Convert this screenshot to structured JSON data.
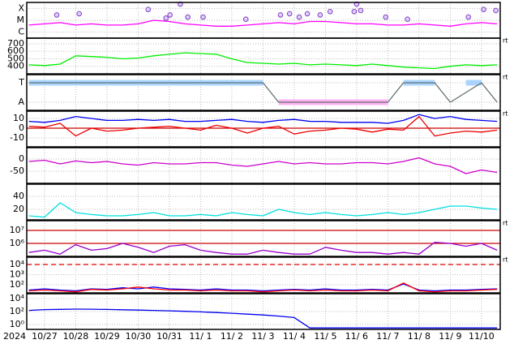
{
  "x_axis": {
    "label": "2024",
    "xlim": [
      0.43,
      15.6
    ],
    "xticks": [
      {
        "value": 1,
        "label": "10/27"
      },
      {
        "value": 2,
        "label": "10/28"
      },
      {
        "value": 3,
        "label": "10/29"
      },
      {
        "value": 4,
        "label": "10/30"
      },
      {
        "value": 5,
        "label": "10/31"
      },
      {
        "value": 6,
        "label": "11/ 1"
      },
      {
        "value": 7,
        "label": "11/ 2"
      },
      {
        "value": 8,
        "label": "11/ 3"
      },
      {
        "value": 9,
        "label": "11/ 4"
      },
      {
        "value": 10,
        "label": "11/ 5"
      },
      {
        "value": 11,
        "label": "11/ 6"
      },
      {
        "value": 12,
        "label": "11/ 7"
      },
      {
        "value": 13,
        "label": "11/ 8"
      },
      {
        "value": 14,
        "label": "11/ 9"
      },
      {
        "value": 15,
        "label": "11/10"
      }
    ],
    "grid": true
  },
  "chart_data": [
    {
      "type": "line",
      "ylim": [
        0.5,
        3.5
      ],
      "yticks": [
        {
          "value": 3,
          "label": "X"
        },
        {
          "value": 2,
          "label": "M"
        },
        {
          "value": 1,
          "label": "C"
        }
      ],
      "x": [
        0.5,
        1,
        1.5,
        2,
        2.5,
        3,
        3.5,
        4,
        4.5,
        5,
        5.5,
        6,
        6.5,
        7,
        7.5,
        8,
        8.5,
        9,
        9.5,
        10,
        10.5,
        11,
        11.5,
        12,
        12.5,
        13,
        13.5,
        14,
        14.5,
        15,
        15.5
      ],
      "series": [
        {
          "color": "#ff00ff",
          "values": [
            1.6,
            1.7,
            1.8,
            1.6,
            1.7,
            1.6,
            1.6,
            1.7,
            2.0,
            1.9,
            1.7,
            1.6,
            1.5,
            1.5,
            1.6,
            1.7,
            1.8,
            1.7,
            1.9,
            1.9,
            1.8,
            1.7,
            1.7,
            1.6,
            1.6,
            1.7,
            1.6,
            1.5,
            1.7,
            1.8,
            1.7
          ]
        },
        {
          "type": "scatter",
          "color": "#8040c0",
          "x": [
            1.39,
            2.11,
            4.32,
            4.89,
            5.02,
            5.35,
            5.59,
            6.08,
            7.45,
            8.56,
            8.85,
            9.16,
            9.42,
            9.83,
            10.15,
            10.92,
            11.0,
            11.13,
            11.93,
            12.63,
            14.58,
            15.07,
            15.46
          ],
          "values": [
            2.45,
            2.55,
            2.91,
            2.18,
            2.45,
            3.36,
            2.27,
            2.27,
            2.09,
            2.45,
            2.55,
            2.27,
            2.55,
            2.45,
            2.73,
            2.73,
            3.36,
            2.82,
            2.27,
            2.09,
            2.27,
            2.91,
            2.82
          ]
        }
      ]
    },
    {
      "type": "line",
      "ylim": [
        300,
        775
      ],
      "yticks": [
        700,
        600,
        500,
        400
      ],
      "side_label": "rt",
      "x": [
        0.5,
        1,
        1.5,
        2,
        2.5,
        3,
        3.5,
        4,
        4.5,
        5,
        5.5,
        6,
        6.5,
        7,
        7.5,
        8,
        8.5,
        9,
        9.5,
        10,
        10.5,
        11,
        11.5,
        12,
        12.5,
        13,
        13.5,
        14,
        14.5,
        15,
        15.5
      ],
      "series": [
        {
          "color": "#00ee00",
          "values": [
            420,
            410,
            430,
            540,
            530,
            520,
            500,
            510,
            540,
            560,
            580,
            570,
            560,
            500,
            450,
            440,
            430,
            440,
            420,
            430,
            420,
            410,
            430,
            410,
            390,
            380,
            370,
            400,
            420,
            410,
            420
          ]
        }
      ]
    },
    {
      "type": "line",
      "ylim": [
        -0.42,
        1.42
      ],
      "yticks": [
        {
          "value": 1,
          "label": "T"
        },
        {
          "value": 0,
          "label": "A"
        }
      ],
      "side_label": "rt",
      "x": [
        0.5,
        1,
        1.5,
        2,
        2.5,
        3,
        3.5,
        4,
        4.5,
        5,
        5.5,
        6,
        6.5,
        7,
        7.5,
        8,
        8.5,
        9,
        9.5,
        10,
        10.5,
        11,
        11.5,
        12,
        12.5,
        13,
        13.5,
        14,
        14.5,
        15,
        15.5
      ],
      "series": [
        {
          "color": "#aad4ff",
          "width": 7,
          "values": [
            1,
            1,
            1,
            1,
            1,
            1,
            1,
            1,
            1,
            1,
            1,
            1,
            1,
            1,
            1,
            1,
            null,
            null,
            null,
            null,
            null,
            null,
            null,
            null,
            1,
            1,
            1,
            null,
            1,
            1,
            null
          ]
        },
        {
          "color": "#ffb0f0",
          "width": 7,
          "values": [
            null,
            null,
            null,
            null,
            null,
            null,
            null,
            null,
            null,
            null,
            null,
            null,
            null,
            null,
            null,
            null,
            0,
            0,
            0,
            0,
            0,
            0,
            0,
            0,
            null,
            null,
            null,
            0,
            null,
            null,
            0
          ]
        },
        {
          "color": "#607070",
          "values": [
            1,
            1,
            1,
            1,
            1,
            1,
            1,
            1,
            1,
            1,
            1,
            1,
            1,
            1,
            1,
            1,
            0,
            0,
            0,
            0,
            0,
            0,
            0,
            0,
            1,
            1,
            1,
            0,
            0.5,
            1,
            0
          ]
        }
      ]
    },
    {
      "type": "line",
      "ylim": [
        -19.2,
        17.5
      ],
      "yticks": [
        10,
        0,
        -10
      ],
      "side_label": "rt",
      "ref_lines": [
        {
          "value": 0,
          "color": "#cc0000"
        }
      ],
      "x": [
        0.5,
        1,
        1.5,
        2,
        2.5,
        3,
        3.5,
        4,
        4.5,
        5,
        5.5,
        6,
        6.5,
        7,
        7.5,
        8,
        8.5,
        9,
        9.5,
        10,
        10.5,
        11,
        11.5,
        12,
        12.5,
        13,
        13.5,
        14,
        14.5,
        15,
        15.5
      ],
      "series": [
        {
          "color": "#0000ee",
          "values": [
            7,
            6,
            8,
            12,
            10,
            8,
            8,
            9,
            8,
            9,
            7,
            7,
            8,
            9,
            7,
            6,
            8,
            9,
            7,
            7,
            6,
            6,
            6,
            5,
            8,
            14,
            10,
            12,
            9,
            8,
            7
          ]
        },
        {
          "color": "#ee0000",
          "values": [
            2,
            1,
            5,
            -8,
            0,
            -3,
            -2,
            0,
            1,
            2,
            0,
            -2,
            3,
            0,
            -5,
            0,
            2,
            -6,
            -3,
            -2,
            0,
            -1,
            -4,
            -1,
            -2,
            12,
            -8,
            -5,
            -3,
            -4,
            -2
          ]
        }
      ]
    },
    {
      "type": "line",
      "ylim": [
        -100,
        46.7
      ],
      "yticks": [
        0,
        -50
      ],
      "x": [
        0.5,
        1,
        1.5,
        2,
        2.5,
        3,
        3.5,
        4,
        4.5,
        5,
        5.5,
        6,
        6.5,
        7,
        7.5,
        8,
        8.5,
        9,
        9.5,
        10,
        10.5,
        11,
        11.5,
        12,
        12.5,
        13,
        13.5,
        14,
        14.5,
        15,
        15.5
      ],
      "series": [
        {
          "color": "#cc00cc",
          "values": [
            -10,
            -5,
            -20,
            -8,
            -15,
            -10,
            -20,
            -25,
            -15,
            -20,
            -20,
            -15,
            -15,
            -25,
            -30,
            -20,
            -10,
            -20,
            -15,
            -20,
            -20,
            -15,
            -15,
            -20,
            -10,
            5,
            -20,
            -30,
            -60,
            -45,
            -55
          ]
        }
      ]
    },
    {
      "type": "line",
      "ylim": [
        3.75,
        58.75
      ],
      "yticks": [
        40,
        20
      ],
      "x": [
        0.5,
        1,
        1.5,
        2,
        2.5,
        3,
        3.5,
        4,
        4.5,
        5,
        5.5,
        6,
        6.5,
        7,
        7.5,
        8,
        8.5,
        9,
        9.5,
        10,
        10.5,
        11,
        11.5,
        12,
        12.5,
        13,
        13.5,
        14,
        14.5,
        15,
        15.5
      ],
      "series": [
        {
          "color": "#00e0e0",
          "values": [
            10,
            8,
            30,
            15,
            12,
            10,
            10,
            12,
            15,
            10,
            10,
            12,
            10,
            15,
            12,
            10,
            20,
            15,
            12,
            15,
            12,
            10,
            12,
            15,
            12,
            15,
            20,
            25,
            25,
            22,
            20
          ]
        }
      ]
    },
    {
      "type": "line",
      "log": true,
      "ylim": [
        100000,
        56234132
      ],
      "yticks": [
        {
          "value": 10000000,
          "label": "10⁷"
        },
        {
          "value": 1000000,
          "label": "10⁶"
        }
      ],
      "side_label": "rt",
      "ref_lines": [
        {
          "value": 10000000,
          "color": "#cc0000"
        },
        {
          "value": 1000000,
          "color": "#cc0000"
        }
      ],
      "x": [
        0.5,
        1,
        1.5,
        2,
        2.5,
        3,
        3.5,
        4,
        4.5,
        5,
        5.5,
        6,
        6.5,
        7,
        7.5,
        8,
        8.5,
        9,
        9.5,
        10,
        10.5,
        11,
        11.5,
        12,
        12.5,
        13,
        13.5,
        14,
        14.5,
        15,
        15.5
      ],
      "series": [
        {
          "color": "#9900cc",
          "values": [
            200000,
            300000,
            150000,
            800000,
            300000,
            400000,
            1000000,
            500000,
            200000,
            600000,
            800000,
            300000,
            200000,
            150000,
            150000,
            300000,
            200000,
            150000,
            150000,
            500000,
            300000,
            200000,
            200000,
            150000,
            200000,
            150000,
            1200000,
            1000000,
            600000,
            1000000,
            300000
          ]
        }
      ]
    },
    {
      "type": "line",
      "log": true,
      "ylim": [
        15.8,
        52481
      ],
      "yticks": [
        {
          "value": 10000,
          "label": "10⁴"
        },
        {
          "value": 1000,
          "label": "10³"
        },
        {
          "value": 100,
          "label": "10²"
        }
      ],
      "side_label": "rt",
      "ref_lines": [
        {
          "value": 10000,
          "color": "#dd0000",
          "dash": true
        }
      ],
      "x": [
        0.5,
        1,
        1.5,
        2,
        2.5,
        3,
        3.5,
        4,
        4.5,
        5,
        5.5,
        6,
        6.5,
        7,
        7.5,
        8,
        8.5,
        9,
        9.5,
        10,
        10.5,
        11,
        11.5,
        12,
        12.5,
        13,
        13.5,
        14,
        14.5,
        15,
        15.5
      ],
      "series": [
        {
          "color": "#0000ff",
          "values": [
            30,
            40,
            30,
            25,
            40,
            35,
            50,
            40,
            60,
            40,
            35,
            30,
            40,
            30,
            30,
            25,
            30,
            35,
            30,
            40,
            30,
            30,
            35,
            30,
            120,
            30,
            25,
            30,
            30,
            35,
            40
          ]
        },
        {
          "color": "#ff0000",
          "values": [
            25,
            30,
            25,
            20,
            35,
            30,
            40,
            60,
            40,
            30,
            30,
            25,
            30,
            25,
            25,
            20,
            25,
            30,
            25,
            30,
            25,
            25,
            30,
            25,
            150,
            25,
            20,
            25,
            25,
            30,
            35
          ]
        }
      ]
    },
    {
      "type": "line",
      "log": true,
      "ylim": [
        0.178,
        56234
      ],
      "yticks": [
        {
          "value": 10000,
          "label": "10⁴"
        },
        {
          "value": 100,
          "label": "10²"
        },
        {
          "value": 1,
          "label": "10⁰"
        }
      ],
      "x": [
        0.5,
        1,
        1.5,
        2,
        2.5,
        3,
        3.5,
        4,
        4.5,
        5,
        5.5,
        6,
        6.5,
        7,
        7.5,
        8,
        8.5,
        9,
        9.5,
        10,
        10.5,
        11,
        11.5,
        12,
        12.5,
        13,
        13.5,
        14,
        14.5,
        15,
        15.5
      ],
      "series": [
        {
          "color": "#0000ee",
          "values": [
            150,
            200,
            220,
            240,
            230,
            210,
            190,
            170,
            150,
            130,
            110,
            90,
            70,
            55,
            40,
            30,
            20,
            12,
            0.3,
            0.3,
            0.3,
            0.3,
            0.3,
            0.3,
            0.3,
            0.3,
            0.3,
            0.3,
            0.3,
            0.3,
            0.3
          ]
        }
      ]
    }
  ]
}
